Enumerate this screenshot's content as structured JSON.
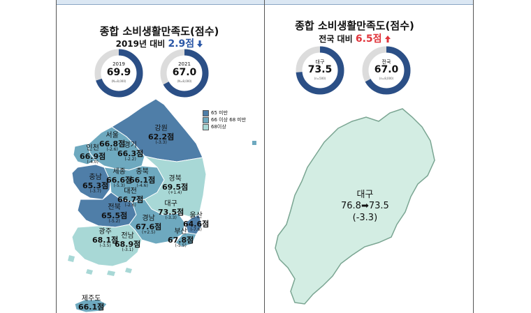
{
  "left_panel": {
    "title": "종합 소비생활만족도(점수)",
    "subtitle_prefix": "2019년 대비",
    "subtitle_value": "2.9점",
    "subtitle_direction": "down",
    "donuts": [
      {
        "year": "2019",
        "value": "69.9",
        "note": "(N=8,000)",
        "fraction": 0.699
      },
      {
        "year": "2021",
        "value": "67.0",
        "note": "(N=8,000)",
        "fraction": 0.67
      }
    ],
    "legend": [
      {
        "label": "65 미만",
        "color": "#4f7ea8"
      },
      {
        "label": "66 이상 68 미만",
        "color": "#6ea9bf"
      },
      {
        "label": "68이상",
        "color": "#a8d8d6"
      }
    ],
    "regions": [
      {
        "name": "강원",
        "score": "62.2점",
        "change": "(-3.3)"
      },
      {
        "name": "서울",
        "score": "66.8점",
        "change": "(-2.6)"
      },
      {
        "name": "경기",
        "score": "66.3점",
        "change": "(-2.2)"
      },
      {
        "name": "인천",
        "score": "66.9점",
        "change": "(-4.0)"
      },
      {
        "name": "충남",
        "score": "65.3점",
        "change": "(-3.7)"
      },
      {
        "name": "세종",
        "score": "66.6점",
        "change": "(-5.3)"
      },
      {
        "name": "충북",
        "score": "66.1점",
        "change": "(-4.6)"
      },
      {
        "name": "경북",
        "score": "69.5점",
        "change": "(+1.4)"
      },
      {
        "name": "대전",
        "score": "66.7점",
        "change": "(-2.6)"
      },
      {
        "name": "대구",
        "score": "73.5점",
        "change": "(-3.3)"
      },
      {
        "name": "전북",
        "score": "65.5점",
        "change": "(-5.2)"
      },
      {
        "name": "울산",
        "score": "64.6점",
        "change": "(-7.6)"
      },
      {
        "name": "경남",
        "score": "67.6점",
        "change": "(+2.5)"
      },
      {
        "name": "광주",
        "score": "68.1점",
        "change": "(-3.5)"
      },
      {
        "name": "전남",
        "score": "68.9점",
        "change": "(-3.1)"
      },
      {
        "name": "부산",
        "score": "67.8점",
        "change": "(-5.5)"
      },
      {
        "name": "제주도",
        "score": "66.1점",
        "change": ""
      }
    ]
  },
  "right_panel": {
    "title": "종합 소비생활만족도(점수)",
    "subtitle_prefix": "전국 대비",
    "subtitle_value": "6.5점",
    "subtitle_direction": "up",
    "donuts": [
      {
        "year": "대구",
        "value": "73.5",
        "note": "(n=500)",
        "fraction": 0.735
      },
      {
        "year": "전국",
        "value": "67.0",
        "note": "(n=8,000)",
        "fraction": 0.67
      }
    ],
    "region": {
      "name": "대구",
      "before": "76.8",
      "arrow": "➡",
      "after": "73.5",
      "change": "(-3.3)"
    }
  },
  "colors": {
    "dark": "#4f7ea8",
    "mid": "#6ea9bf",
    "light": "#a8d8d6",
    "donut_fill": "#2b4f86",
    "donut_track": "#dcdcdc",
    "daegu_fill": "#d3ede3"
  }
}
